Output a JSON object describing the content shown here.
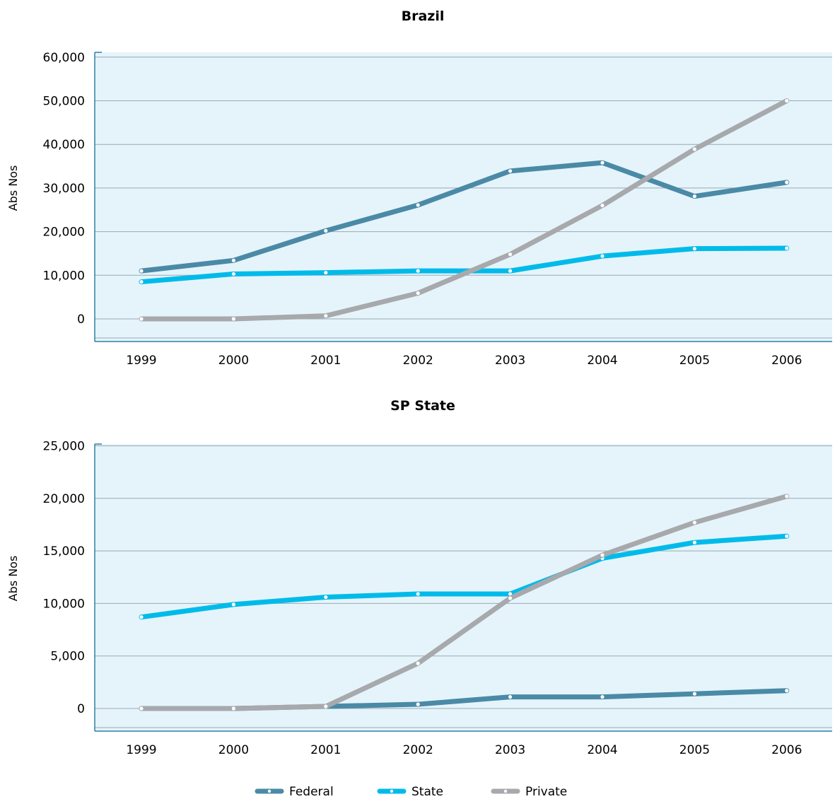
{
  "colors": {
    "federal": "#4a8aa6",
    "state": "#00bbea",
    "private": "#a7a9ac",
    "plot_bg": "#e5f4fb",
    "grid": "#9aa9b3",
    "axis": "#2f7fa6"
  },
  "legend": {
    "placement": "bottom-center",
    "items": [
      "Federal",
      "State",
      "Private"
    ]
  },
  "chart_data": [
    {
      "type": "line",
      "title": "Brazil",
      "xlabel": "",
      "ylabel": "Abs Nos",
      "ylim": [
        -5000,
        60000
      ],
      "grid": true,
      "categories": [
        "1999",
        "2000",
        "2001",
        "2002",
        "2003",
        "2004",
        "2005",
        "2006"
      ],
      "y_ticks": [
        0,
        10000,
        20000,
        30000,
        40000,
        50000,
        60000
      ],
      "y_tick_labels": [
        "0",
        "10,000",
        "20,000",
        "30,000",
        "40,000",
        "50,000",
        "60,000"
      ],
      "series": [
        {
          "name": "Federal",
          "values": [
            11000,
            13400,
            20200,
            26100,
            33900,
            35800,
            28100,
            31300
          ]
        },
        {
          "name": "State",
          "values": [
            8500,
            10300,
            10600,
            11000,
            11000,
            14400,
            16100,
            16200
          ]
        },
        {
          "name": "Private",
          "values": [
            0,
            0,
            700,
            5900,
            14800,
            26000,
            38900,
            50000
          ]
        }
      ]
    },
    {
      "type": "line",
      "title": "SP State",
      "xlabel": "",
      "ylabel": "Abs Nos",
      "ylim": [
        -1800,
        25000
      ],
      "grid": true,
      "categories": [
        "1999",
        "2000",
        "2001",
        "2002",
        "2003",
        "2004",
        "2005",
        "2006"
      ],
      "y_ticks": [
        0,
        5000,
        10000,
        15000,
        20000,
        25000
      ],
      "y_tick_labels": [
        "0",
        "5,000",
        "10,000",
        "15,000",
        "20,000",
        "25,000"
      ],
      "series": [
        {
          "name": "Federal",
          "values": [
            0,
            0,
            200,
            400,
            1100,
            1100,
            1400,
            1700
          ]
        },
        {
          "name": "State",
          "values": [
            8700,
            9900,
            10600,
            10900,
            10900,
            14300,
            15800,
            16400
          ]
        },
        {
          "name": "Private",
          "values": [
            0,
            0,
            200,
            4300,
            10500,
            14600,
            17700,
            20200
          ]
        }
      ]
    }
  ]
}
